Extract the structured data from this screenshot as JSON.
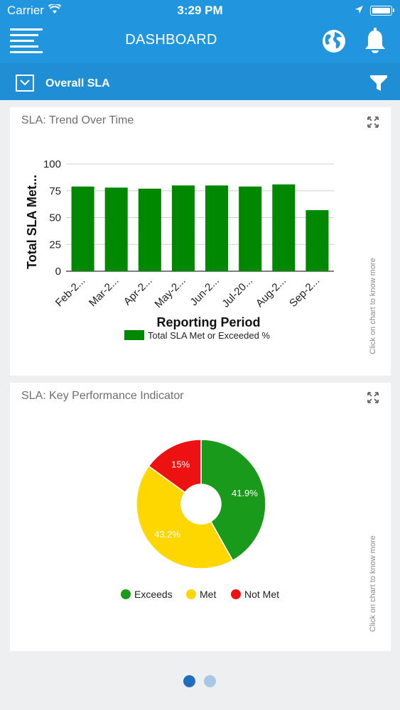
{
  "status_bar": {
    "carrier": "Carrier",
    "time": "3:29 PM"
  },
  "nav": {
    "title": "DASHBOARD"
  },
  "filter_bar": {
    "title": "Overall SLA"
  },
  "trend_card": {
    "title": "SLA: Trend Over Time",
    "hint": "Click on chart to know more"
  },
  "kpi_card": {
    "title": "SLA: Key Performance Indicator",
    "hint": "Click on chart to know more"
  },
  "pager": {
    "active_index": 0,
    "count": 2
  },
  "chart_data": [
    {
      "type": "bar",
      "categories": [
        "Feb-2...",
        "Mar-2...",
        "Apr-2...",
        "May-2...",
        "Jun-2...",
        "Jul-20...",
        "Aug-2...",
        "Sep-2..."
      ],
      "series": [
        {
          "name": "Total SLA Met or Exceeded %",
          "values": [
            79,
            78,
            77,
            80,
            80,
            79,
            81,
            57
          ],
          "color": "#008800"
        }
      ],
      "xlabel": "Reporting Period",
      "ylabel": "Total SLA Met...",
      "ylim": [
        0,
        100
      ],
      "yticks": [
        0,
        25,
        50,
        75,
        100
      ],
      "grid": true,
      "legend": "bottom"
    },
    {
      "type": "pie",
      "labels": [
        "Exceeds",
        "Met",
        "Not Met"
      ],
      "values": [
        41.9,
        43.2,
        15
      ],
      "value_labels": [
        "41.9%",
        "43.2%",
        "15%"
      ],
      "colors": [
        "#1a9a1a",
        "#ffd700",
        "#ee1111"
      ],
      "donut": true,
      "legend": "bottom"
    }
  ]
}
